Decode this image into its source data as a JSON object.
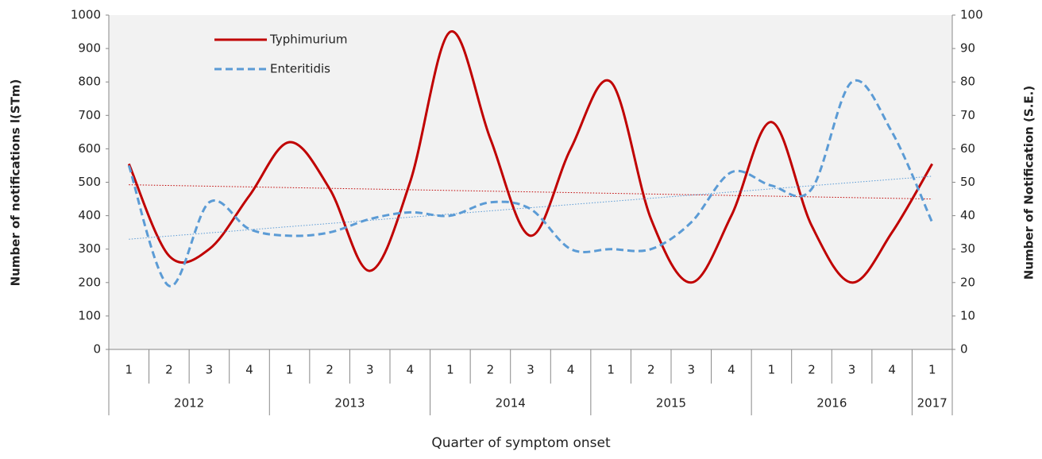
{
  "chart_data": {
    "type": "line",
    "x_label": "Quarter of symptom onset",
    "y_label": "Number of notifications l(STm)",
    "y2_label": "Number of Notification (S.E.)",
    "categories": [
      [
        "1",
        "2012"
      ],
      [
        "2",
        "2012"
      ],
      [
        "3",
        "2012"
      ],
      [
        "4",
        "2012"
      ],
      [
        "1",
        "2013"
      ],
      [
        "2",
        "2013"
      ],
      [
        "3",
        "2013"
      ],
      [
        "4",
        "2013"
      ],
      [
        "1",
        "2014"
      ],
      [
        "2",
        "2014"
      ],
      [
        "3",
        "2014"
      ],
      [
        "4",
        "2014"
      ],
      [
        "1",
        "2015"
      ],
      [
        "2",
        "2015"
      ],
      [
        "3",
        "2015"
      ],
      [
        "4",
        "2015"
      ],
      [
        "1",
        "2016"
      ],
      [
        "2",
        "2016"
      ],
      [
        "3",
        "2016"
      ],
      [
        "4",
        "2016"
      ],
      [
        "1",
        "2017"
      ]
    ],
    "series": [
      {
        "name": "Typhimurium",
        "color": "#c00000",
        "dash": false,
        "axis": "y",
        "values": [
          555,
          280,
          300,
          460,
          620,
          480,
          235,
          500,
          950,
          630,
          340,
          600,
          800,
          390,
          200,
          400,
          680,
          370,
          200,
          350,
          555
        ]
      },
      {
        "name": "Enteritidis",
        "color": "#5b9bd5",
        "dash": true,
        "axis": "y2",
        "values": [
          55,
          19,
          44,
          36,
          34,
          35,
          39,
          41,
          40,
          44,
          42,
          30,
          30,
          30,
          38,
          53,
          49,
          48,
          80,
          65,
          38
        ]
      }
    ],
    "trendline": true,
    "smooth": true,
    "legend": "upper left",
    "background": "#f2f2f2",
    "ylim": [
      0,
      1000
    ],
    "yticks": [
      0,
      100,
      200,
      300,
      400,
      500,
      600,
      700,
      800,
      900,
      1000
    ],
    "y2lim": [
      0,
      100
    ],
    "y2ticks": [
      0,
      10,
      20,
      30,
      40,
      50,
      60,
      70,
      80,
      90,
      100
    ]
  }
}
